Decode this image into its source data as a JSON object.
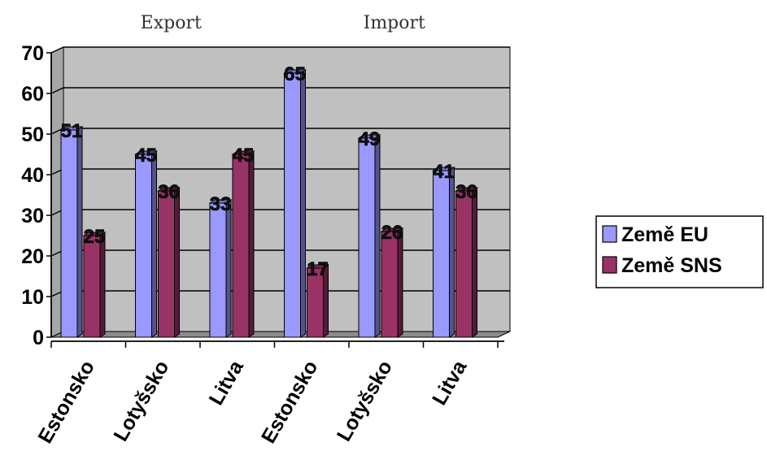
{
  "chart_data": {
    "type": "bar",
    "group_labels": [
      "Export",
      "Import"
    ],
    "categories": [
      "Estonsko",
      "Lotyšsko",
      "Litva",
      "Estonsko",
      "Lotyšsko",
      "Litva"
    ],
    "series": [
      {
        "name": "Země EU",
        "values": [
          51,
          45,
          33,
          65,
          49,
          41
        ],
        "color": "#9999ff"
      },
      {
        "name": "Země SNS",
        "values": [
          25,
          36,
          45,
          17,
          26,
          36
        ],
        "color": "#993366"
      }
    ],
    "ylim": [
      0,
      70
    ],
    "yticks": [
      "0",
      "10",
      "20",
      "30",
      "40",
      "50",
      "60",
      "70"
    ],
    "grid": true,
    "plot_background": "#c0c0c0",
    "legend_position": "right",
    "data_labels": true
  }
}
